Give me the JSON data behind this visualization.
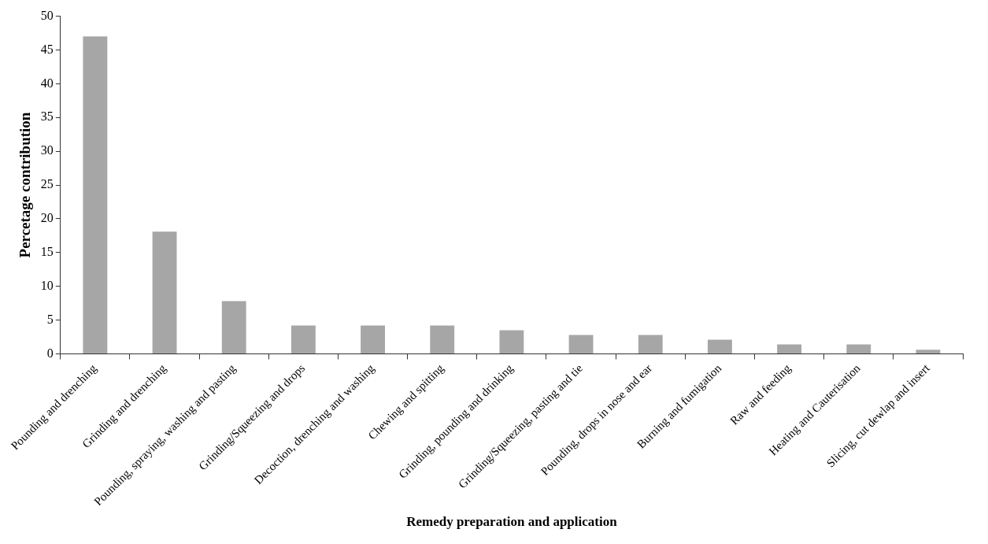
{
  "chart_data": {
    "type": "bar",
    "xlabel": "Remedy preparation and application",
    "ylabel": "Percetage contribution",
    "categories": [
      "Pounding and drenching",
      "Grinding and drenching",
      "Pounding, spraying, washing and pasting",
      "Grinding/Squeezing and drops",
      "Decoction, drenching and washing",
      "Chewing and spitting",
      "Grinding, pounding and drinking",
      "Grinding/Squeezing, pasting and tie",
      "Pounding, drops in nose and ear",
      "Burning and fumigation",
      "Raw and feeding",
      "Heating and Cauterisation",
      "Slicing, cut dewlap and insert"
    ],
    "values": [
      47,
      18.1,
      7.8,
      4.2,
      4.2,
      4.2,
      3.5,
      2.8,
      2.8,
      2.1,
      1.4,
      1.4,
      0.6
    ],
    "color": "#a6a6a6",
    "ylim": [
      0,
      50
    ],
    "yticks": [
      0,
      5,
      10,
      15,
      20,
      25,
      30,
      35,
      40,
      45,
      50
    ],
    "grid": false,
    "legend": false
  }
}
